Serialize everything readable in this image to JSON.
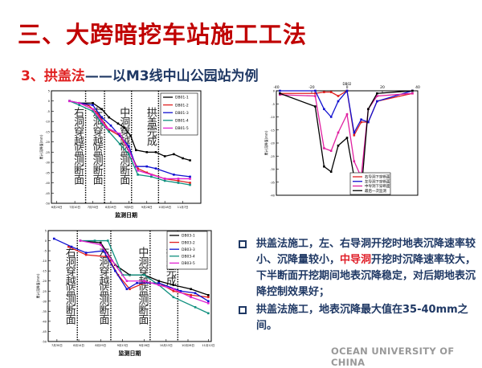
{
  "slide": {
    "title": "三、大跨暗挖车站施工工法",
    "subtitle_num": "3、拱盖法",
    "subtitle_rest": "——以M3线中山公园站为例",
    "bullets": [
      {
        "pre": "拱盖法施工，左、右导洞开挖时地表沉降速率较小、沉降量较小，",
        "highlight": "中导洞",
        "post": "开挖时沉降速率较大，下半断面开挖期间地表沉降稳定，对后期地表沉降控制效果好；"
      },
      {
        "pre": "拱盖法施工，地表沉降最大值在35-40mm之间。",
        "highlight": "",
        "post": ""
      }
    ],
    "footer": "OCEAN UNIVERSITY OF CHINA",
    "colors": {
      "title": "#c00000",
      "text": "#1f3864",
      "highlight": "#e0202a"
    }
  },
  "chart_data": [
    {
      "type": "line",
      "xlabel": "监测日期",
      "ylabel": "累计沉降值(mm)",
      "xlim": [
        -6,
        160
      ],
      "ylim": [
        -50,
        5
      ],
      "yticks": [
        5,
        0,
        -5,
        -10,
        -15,
        -20,
        -25,
        -30,
        -35,
        -40,
        -45,
        -50
      ],
      "xticks": [
        {
          "v": 0,
          "l": "6月20日"
        },
        {
          "v": 20,
          "l": "7月10日"
        },
        {
          "v": 40,
          "l": "7月30日"
        },
        {
          "v": 60,
          "l": "8月19日"
        },
        {
          "v": 80,
          "l": "9月8日"
        },
        {
          "v": 100,
          "l": "9月28日"
        },
        {
          "v": 120,
          "l": "10月18日"
        },
        {
          "v": 140,
          "l": "11月7日"
        }
      ],
      "events": [
        {
          "x": 32,
          "l": "右洞穿越监测断面"
        },
        {
          "x": 53,
          "l": "左洞穿越监测断面"
        },
        {
          "x": 83,
          "l": "中洞穿越监测断面"
        },
        {
          "x": 113,
          "l": "拱盖完成"
        }
      ],
      "series": [
        {
          "name": "DB01-1",
          "color": "#000000",
          "points": [
            [
              14,
              0
            ],
            [
              25,
              -1
            ],
            [
              40,
              -1
            ],
            [
              50,
              -4
            ],
            [
              58,
              -8
            ],
            [
              68,
              -11
            ],
            [
              75,
              -13
            ],
            [
              82,
              -17
            ],
            [
              88,
              -24
            ],
            [
              100,
              -25
            ],
            [
              110,
              -25
            ],
            [
              120,
              -27
            ],
            [
              130,
              -26
            ],
            [
              140,
              -28
            ],
            [
              148,
              -29
            ]
          ]
        },
        {
          "name": "DB01-2",
          "color": "#e02020",
          "points": [
            [
              14,
              0
            ],
            [
              25,
              -1
            ],
            [
              35,
              -2
            ],
            [
              45,
              -6
            ],
            [
              58,
              -14
            ],
            [
              70,
              -17
            ],
            [
              80,
              -24
            ],
            [
              90,
              -33
            ],
            [
              100,
              -35
            ],
            [
              120,
              -38
            ],
            [
              135,
              -39
            ],
            [
              148,
              -40
            ]
          ]
        },
        {
          "name": "DB01-3",
          "color": "#1010d0",
          "points": [
            [
              14,
              0
            ],
            [
              25,
              -1
            ],
            [
              40,
              -2
            ],
            [
              50,
              -8
            ],
            [
              60,
              -12
            ],
            [
              70,
              -17
            ],
            [
              80,
              -22
            ],
            [
              88,
              -32
            ],
            [
              100,
              -32
            ],
            [
              110,
              -33
            ],
            [
              130,
              -36
            ],
            [
              148,
              -37
            ]
          ]
        },
        {
          "name": "DB01-4",
          "color": "#10907f",
          "points": [
            [
              14,
              0
            ],
            [
              25,
              -2
            ],
            [
              40,
              -5
            ],
            [
              50,
              -11
            ],
            [
              58,
              -15
            ],
            [
              70,
              -21
            ],
            [
              80,
              -26
            ],
            [
              90,
              -36
            ],
            [
              105,
              -37
            ],
            [
              120,
              -39
            ],
            [
              135,
              -40
            ],
            [
              148,
              -41
            ]
          ]
        },
        {
          "name": "DB01-5",
          "color": "#e020d0",
          "points": [
            [
              14,
              0
            ],
            [
              25,
              -1
            ],
            [
              40,
              -4
            ],
            [
              50,
              -10
            ],
            [
              55,
              -13
            ],
            [
              70,
              -16
            ],
            [
              80,
              -24
            ],
            [
              90,
              -34
            ],
            [
              105,
              -36
            ],
            [
              120,
              -38
            ],
            [
              135,
              -38
            ],
            [
              148,
              -38
            ]
          ]
        }
      ]
    },
    {
      "type": "line",
      "title": "DB02",
      "xlabel": "",
      "ylabel": "累计沉降值(mm)",
      "xlim": [
        -40,
        40
      ],
      "ylim": [
        -40,
        0
      ],
      "yticks": [
        0,
        -5,
        -10,
        -15,
        -20,
        -25,
        -30,
        -35,
        -40
      ],
      "xticks": [
        {
          "v": -40,
          "l": "-40"
        },
        {
          "v": -20,
          "l": "-20"
        },
        {
          "v": 0,
          "l": "0"
        },
        {
          "v": 20,
          "l": "20"
        },
        {
          "v": 40,
          "l": "40"
        }
      ],
      "events": [],
      "series": [
        {
          "name": "右导洞下穿断面",
          "color": "#e02020",
          "points": [
            [
              -38,
              -1
            ],
            [
              -18,
              -1
            ],
            [
              -13,
              -0.5
            ],
            [
              -9,
              -0.5
            ],
            [
              -5,
              -2
            ],
            [
              0,
              0
            ],
            [
              4,
              -17
            ],
            [
              8,
              -12
            ],
            [
              12,
              -12
            ],
            [
              17,
              -4
            ],
            [
              37,
              -1
            ]
          ]
        },
        {
          "name": "左导洞下穿断面",
          "color": "#1010d0",
          "points": [
            [
              -38,
              0
            ],
            [
              -18,
              0
            ],
            [
              -13,
              -7
            ],
            [
              -9,
              -10
            ],
            [
              -5,
              -4
            ],
            [
              0,
              0
            ],
            [
              4,
              -16
            ],
            [
              8,
              -11
            ],
            [
              12,
              -12
            ],
            [
              17,
              -4
            ],
            [
              37,
              0
            ]
          ]
        },
        {
          "name": "中导洞下穿断面",
          "color": "#e020a0",
          "points": [
            [
              -38,
              -1.5
            ],
            [
              -18,
              -2
            ],
            [
              -13,
              -22
            ],
            [
              -9,
              -23
            ],
            [
              -5,
              -16
            ],
            [
              0,
              -9
            ],
            [
              4,
              -27
            ],
            [
              8,
              -33
            ],
            [
              12,
              -7
            ],
            [
              17,
              -2
            ],
            [
              37,
              -1
            ]
          ]
        },
        {
          "name": "最后一次监测",
          "color": "#000000",
          "points": [
            [
              -38,
              -1
            ],
            [
              -18,
              -6
            ],
            [
              -13,
              -29
            ],
            [
              -9,
              -31
            ],
            [
              -5,
              -21
            ],
            [
              0,
              -18
            ],
            [
              4,
              -33
            ],
            [
              8,
              -39
            ],
            [
              12,
              -7
            ],
            [
              17,
              -1
            ],
            [
              37,
              0
            ]
          ]
        }
      ]
    },
    {
      "type": "line",
      "xlabel": "监测日期",
      "ylabel": "累计沉降值(mm)",
      "xlim": [
        -6,
        106
      ],
      "ylim": [
        -50,
        5
      ],
      "yticks": [
        5,
        0,
        -5,
        -10,
        -15,
        -20,
        -25,
        -30,
        -35,
        -40,
        -45,
        -50
      ],
      "xticks": [
        {
          "v": 0,
          "l": "7月30日"
        },
        {
          "v": 15,
          "l": "8月14日"
        },
        {
          "v": 30,
          "l": "8月29日"
        },
        {
          "v": 45,
          "l": "9月13日"
        },
        {
          "v": 60,
          "l": "9月28日"
        },
        {
          "v": 75,
          "l": "10月13日"
        },
        {
          "v": 90,
          "l": "10月28日"
        },
        {
          "v": 104,
          "l": "11月12日"
        }
      ],
      "events": [
        {
          "x": 14,
          "l": "右洞穿越监测断面"
        },
        {
          "x": 37,
          "l": "左洞穿越监测断面"
        },
        {
          "x": 64,
          "l": "中洞穿越监测断面"
        },
        {
          "x": 83,
          "l": "拱盖完成"
        }
      ],
      "series": [
        {
          "name": "DB03-1",
          "color": "#000000",
          "points": [
            [
              16,
              0
            ],
            [
              30,
              -1
            ],
            [
              40,
              -12
            ],
            [
              50,
              -17
            ],
            [
              60,
              -17
            ],
            [
              70,
              -20
            ],
            [
              80,
              -22
            ],
            [
              92,
              -24
            ],
            [
              104,
              -27
            ]
          ]
        },
        {
          "name": "DB03-2",
          "color": "#e02020",
          "points": [
            [
              8,
              -3
            ],
            [
              20,
              -7
            ],
            [
              35,
              -8
            ],
            [
              42,
              -17
            ],
            [
              50,
              -24
            ],
            [
              60,
              -21
            ],
            [
              70,
              -21
            ],
            [
              80,
              -25
            ],
            [
              92,
              -27
            ],
            [
              104,
              -28
            ]
          ]
        },
        {
          "name": "DB03-3",
          "color": "#1010d0",
          "points": [
            [
              -2,
              1
            ],
            [
              10,
              -3
            ],
            [
              20,
              -6
            ],
            [
              32,
              -5
            ],
            [
              40,
              -15
            ],
            [
              48,
              -24
            ],
            [
              55,
              -21
            ],
            [
              70,
              -21
            ],
            [
              85,
              -25
            ],
            [
              95,
              -26
            ],
            [
              104,
              -30
            ]
          ]
        },
        {
          "name": "DB03-4",
          "color": "#10907f",
          "points": [
            [
              16,
              0
            ],
            [
              26,
              0
            ],
            [
              35,
              0
            ],
            [
              45,
              -17
            ],
            [
              60,
              -17
            ],
            [
              70,
              -22
            ],
            [
              80,
              -28
            ],
            [
              95,
              -33
            ],
            [
              104,
              -36
            ]
          ]
        },
        {
          "name": "DB03-5",
          "color": "#e020d0",
          "points": [
            [
              16,
              0
            ],
            [
              30,
              -2
            ],
            [
              38,
              -10
            ],
            [
              48,
              -20
            ],
            [
              60,
              -20
            ],
            [
              70,
              -22
            ],
            [
              80,
              -24
            ],
            [
              92,
              -28
            ],
            [
              104,
              -31
            ]
          ]
        }
      ]
    }
  ]
}
